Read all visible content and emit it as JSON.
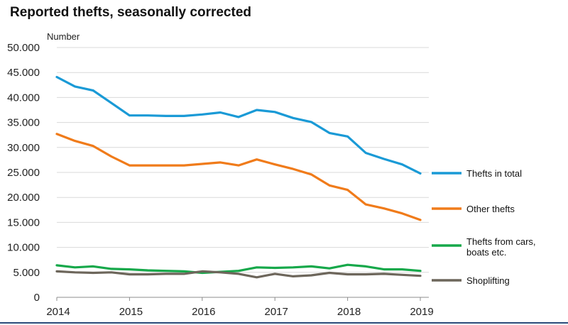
{
  "chart_data": {
    "type": "line",
    "title": "Reported thefts, seasonally corrected",
    "ylabel": "Number",
    "xlabel": "",
    "ylim": [
      0,
      50000
    ],
    "xlim": [
      2014,
      2019
    ],
    "y_ticks": [
      0,
      5000,
      10000,
      15000,
      20000,
      25000,
      30000,
      35000,
      40000,
      45000,
      50000
    ],
    "y_tick_labels": [
      "0",
      "5.000",
      "10.000",
      "15.000",
      "20.000",
      "25.000",
      "30.000",
      "35.000",
      "40.000",
      "45.000",
      "50.000"
    ],
    "x_ticks": [
      2014,
      2015,
      2016,
      2017,
      2018,
      2019
    ],
    "x_tick_labels": [
      "2014",
      "2015",
      "2016",
      "2017",
      "2018",
      "2019"
    ],
    "grid": true,
    "legend_position": "right",
    "x": [
      2014,
      2014.25,
      2014.5,
      2014.75,
      2015,
      2015.25,
      2015.5,
      2015.75,
      2016,
      2016.25,
      2016.5,
      2016.75,
      2017,
      2017.25,
      2017.5,
      2017.75,
      2018,
      2018.25,
      2018.5,
      2018.75,
      2019
    ],
    "series": [
      {
        "name": "Thefts in total",
        "color": "#1a9ad6",
        "values": [
          44100,
          42200,
          41400,
          38900,
          36400,
          36400,
          36300,
          36300,
          36600,
          37000,
          36100,
          37500,
          37100,
          35900,
          35100,
          32900,
          32200,
          28900,
          27700,
          26600,
          24800
        ]
      },
      {
        "name": "Other thefts",
        "color": "#f07b1a",
        "values": [
          32700,
          31300,
          30300,
          28200,
          26400,
          26400,
          26400,
          26400,
          26700,
          27000,
          26400,
          27600,
          26600,
          25700,
          24600,
          22400,
          21500,
          18600,
          17800,
          16800,
          15500
        ]
      },
      {
        "name": "Thefts from cars, boats etc.",
        "label_lines": [
          "Thefts from cars,",
          "boats etc."
        ],
        "color": "#16a84a",
        "values": [
          6400,
          6000,
          6200,
          5700,
          5600,
          5400,
          5300,
          5200,
          4900,
          5100,
          5300,
          6000,
          5900,
          6000,
          6200,
          5800,
          6500,
          6200,
          5600,
          5600,
          5300
        ]
      },
      {
        "name": "Shoplifting",
        "color": "#6d665b",
        "values": [
          5200,
          5000,
          4900,
          5000,
          4600,
          4600,
          4700,
          4700,
          5200,
          5000,
          4700,
          4000,
          4700,
          4200,
          4400,
          4900,
          4600,
          4600,
          4700,
          4500,
          4300
        ]
      }
    ]
  }
}
